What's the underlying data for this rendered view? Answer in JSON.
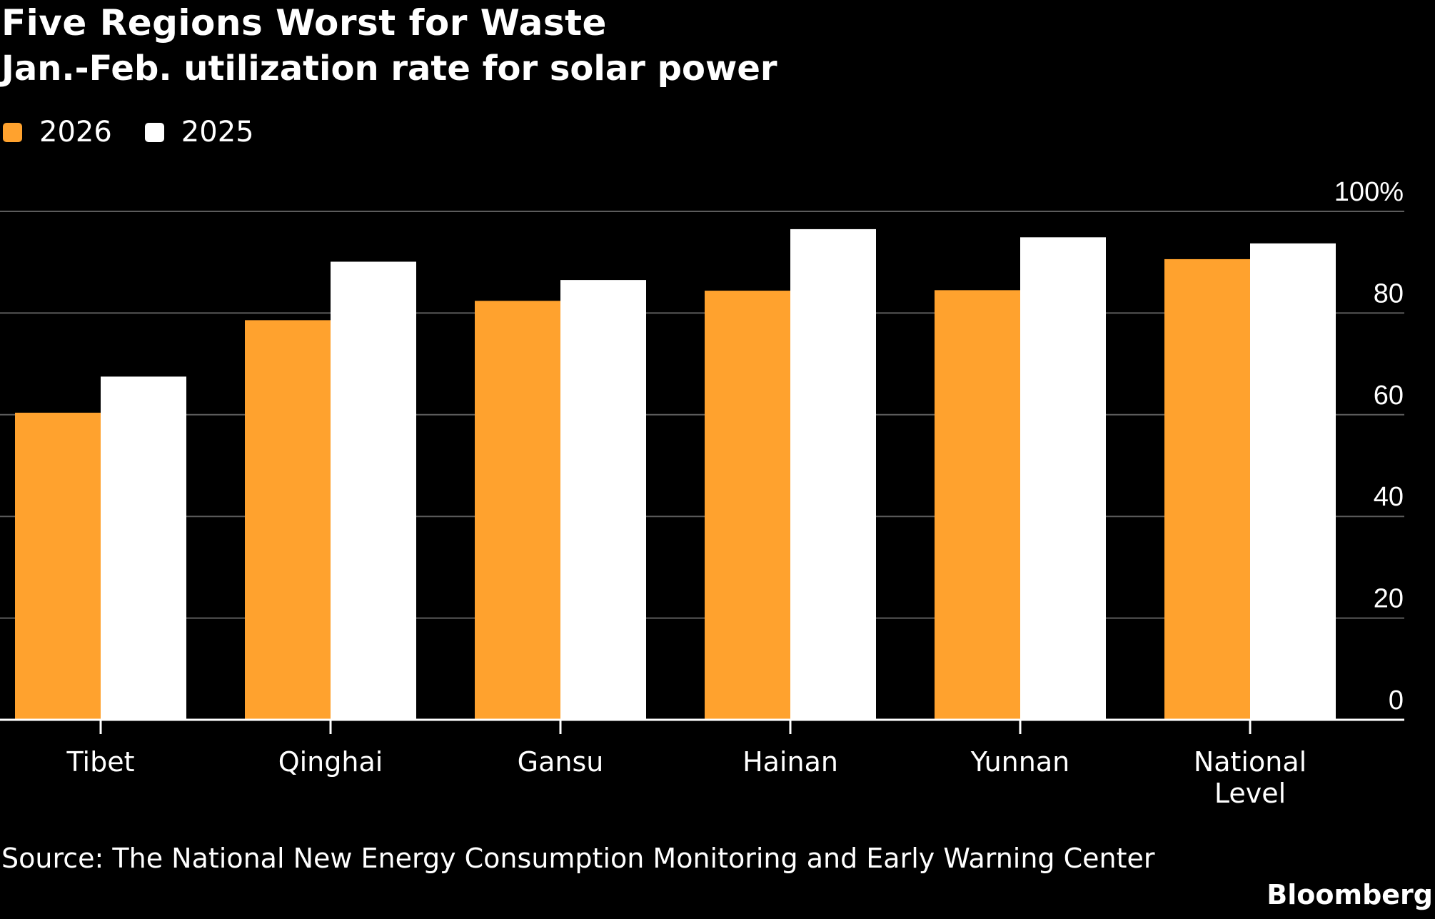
{
  "title": "Five Regions Worst for Waste",
  "subtitle": "Jan.-Feb. utilization rate for solar power",
  "legend": [
    {
      "label": "2026",
      "color": "#FFA22E"
    },
    {
      "label": "2025",
      "color": "#FFFFFF"
    }
  ],
  "source": "Source: The National New Energy Consumption Monitoring and Early Warning Center",
  "brand": "Bloomberg",
  "chart_data": {
    "type": "bar",
    "title": "Five Regions Worst for Waste",
    "subtitle": "Jan.-Feb. utilization rate for solar power",
    "categories": [
      [
        "Tibet"
      ],
      [
        "Qinghai"
      ],
      [
        "Gansu"
      ],
      [
        "Hainan"
      ],
      [
        "Yunnan"
      ],
      [
        "National",
        "Level"
      ]
    ],
    "series": [
      {
        "name": "2026",
        "color": "#FFA22E",
        "values": [
          60.4,
          78.6,
          82.4,
          84.4,
          84.5,
          90.6
        ]
      },
      {
        "name": "2025",
        "color": "#FFFFFF",
        "values": [
          67.5,
          90.1,
          86.5,
          96.5,
          94.9,
          93.7
        ]
      }
    ],
    "ylim": [
      0,
      100
    ],
    "yticks": [
      {
        "value": 0,
        "label": "0"
      },
      {
        "value": 20,
        "label": "20"
      },
      {
        "value": 40,
        "label": "40"
      },
      {
        "value": 60,
        "label": "60"
      },
      {
        "value": 80,
        "label": "80"
      },
      {
        "value": 100,
        "label": "100%"
      }
    ],
    "axis_position": "right",
    "grid": true,
    "legend_position": "top-left",
    "xlabel": "",
    "ylabel": ""
  }
}
